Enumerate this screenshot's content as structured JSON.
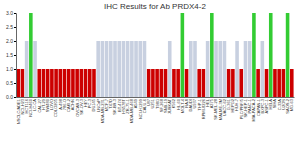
{
  "chart_data": {
    "type": "bar",
    "title": "IHC Results for Ab PRDX4-2",
    "categories": [
      "NSCLC/ADE1",
      "NCI-H23",
      "HCT116",
      "NCI-H460",
      "LC-CA",
      "CAL-27",
      "HT-29",
      "SW480",
      "LOVO",
      "COLO205",
      "A-498",
      "786-O",
      "CAKI-2",
      "ACHN",
      "OVCAR-3",
      "SK-OV-3",
      "HEY",
      "PC-3",
      "DU145",
      "LNCaP",
      "MDA-MB-231",
      "MCF-7",
      "T47D",
      "SK-BR-3",
      "BT-474",
      "HS578T",
      "ZR-75-1",
      "MDA-MB-468",
      "A549",
      "NCI-H1299",
      "CALU-6",
      "U87",
      "U251",
      "T98G",
      "SF-268",
      "SNB-19",
      "JURKAT",
      "K562",
      "HL-60",
      "MOLT-4",
      "RAJI",
      "DAUDI",
      "U937",
      "THP-1",
      "RPMI-8226",
      "HEL",
      "A375",
      "SK-MEL-28",
      "MALME-3M",
      "UACC-62",
      "G-361",
      "HEPG2",
      "HUH-7",
      "PLC/PRF/5",
      "SK-HEP-1",
      "PANC-1",
      "MIA-PACA-2",
      "CAPAN-1",
      "BXPC-3",
      "ASPC-1",
      "HELA",
      "SIHA",
      "C-33A",
      "U2OS",
      "SAOS-2",
      "MG-63"
    ],
    "values": [
      1,
      1,
      2,
      3,
      2,
      1,
      1,
      1,
      1,
      1,
      1,
      1,
      1,
      1,
      1,
      1,
      1,
      1,
      1,
      2,
      2,
      2,
      2,
      2,
      2,
      2,
      2,
      2,
      2,
      2,
      2,
      1,
      1,
      1,
      1,
      1,
      2,
      1,
      1,
      3,
      1,
      2,
      2,
      1,
      1,
      2,
      3,
      2,
      2,
      2,
      1,
      1,
      2,
      1,
      2,
      2,
      3,
      1,
      2,
      1,
      3,
      1,
      1,
      1,
      3,
      1
    ],
    "colors": [
      "#cc0000",
      "#cc0000",
      "#c8d0e0",
      "#33cc33",
      "#c8d0e0",
      "#cc0000",
      "#cc0000",
      "#cc0000",
      "#cc0000",
      "#cc0000",
      "#cc0000",
      "#cc0000",
      "#cc0000",
      "#cc0000",
      "#cc0000",
      "#cc0000",
      "#cc0000",
      "#cc0000",
      "#cc0000",
      "#c8d0e0",
      "#c8d0e0",
      "#c8d0e0",
      "#c8d0e0",
      "#c8d0e0",
      "#c8d0e0",
      "#c8d0e0",
      "#c8d0e0",
      "#c8d0e0",
      "#c8d0e0",
      "#c8d0e0",
      "#c8d0e0",
      "#cc0000",
      "#cc0000",
      "#cc0000",
      "#cc0000",
      "#cc0000",
      "#c8d0e0",
      "#cc0000",
      "#cc0000",
      "#33cc33",
      "#cc0000",
      "#c8d0e0",
      "#c8d0e0",
      "#cc0000",
      "#cc0000",
      "#c8d0e0",
      "#33cc33",
      "#c8d0e0",
      "#c8d0e0",
      "#c8d0e0",
      "#cc0000",
      "#cc0000",
      "#c8d0e0",
      "#cc0000",
      "#c8d0e0",
      "#c8d0e0",
      "#33cc33",
      "#cc0000",
      "#c8d0e0",
      "#cc0000",
      "#33cc33",
      "#cc0000",
      "#cc0000",
      "#cc0000",
      "#33cc33",
      "#cc0000"
    ],
    "ylim": [
      0,
      3
    ],
    "yticks": [
      {
        "value": 0,
        "label": "0.0"
      },
      0.5,
      {
        "value": 1,
        "label": "1.0"
      },
      1.5,
      {
        "value": 2,
        "label": "2.0"
      },
      2.5,
      {
        "value": 3,
        "label": "3.0"
      }
    ],
    "grid": false
  }
}
